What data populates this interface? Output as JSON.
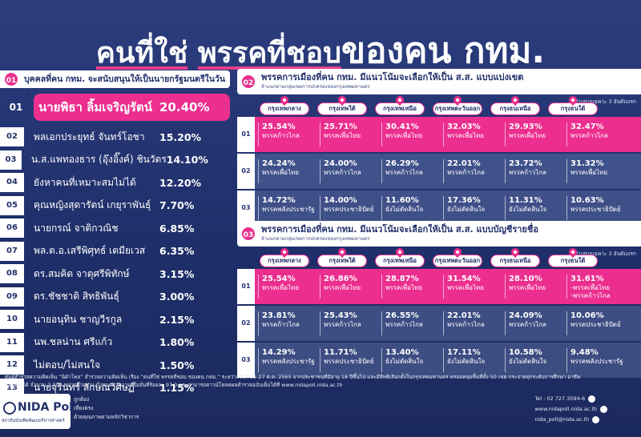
{
  "title": {
    "part1": "คนที่ใช่",
    "part2": "พรรคที่ชอบ",
    "part3": "ของคน กทม."
  },
  "section1": {
    "num": "01",
    "heading": "บุคคลที่คน กทม. จะสนับสนุนให้เป็นนายกรัฐมนตรีในวันนี้",
    "items": [
      {
        "rank": "01",
        "name": "นายพิธา ลิ้มเจริญรัตน์",
        "pct": "20.40%"
      },
      {
        "rank": "02",
        "name": "พลเอกประยุทธ์ จันทร์โอชา",
        "pct": "15.20%"
      },
      {
        "rank": "03",
        "name": "น.ส.แพทองธาร (อุ๊งอิ๊งค์) ชินวัตร",
        "pct": "14.10%"
      },
      {
        "rank": "04",
        "name": "ยังหาคนที่เหมาะสมไม่ได้",
        "pct": "12.20%"
      },
      {
        "rank": "05",
        "name": "คุณหญิงสุดารัตน์ เกยุราพันธุ์",
        "pct": "7.70%"
      },
      {
        "rank": "06",
        "name": "นายกรณ์ จาติกวณิช",
        "pct": "6.85%"
      },
      {
        "rank": "07",
        "name": "พล.ต.อ.เสรีพิศุทธ์ เตมียเวส",
        "pct": "6.35%"
      },
      {
        "rank": "08",
        "name": "ดร.สมคิด จาตุศรีพิทักษ์",
        "pct": "3.15%"
      },
      {
        "rank": "09",
        "name": "ดร.ชัชชาติ สิทธิพันธุ์",
        "pct": "3.00%"
      },
      {
        "rank": "10",
        "name": "นายอนุทิน ชาญวีรกูล",
        "pct": "2.15%"
      },
      {
        "rank": "11",
        "name": "นพ.ชลน่าน ศรีแก้ว",
        "pct": "1.80%"
      },
      {
        "rank": "12",
        "name": "ไม่ตอบ/ไม่สนใจ",
        "pct": "1.50%"
      },
      {
        "rank": "13",
        "name": "นายจุรินทร์ ลักษณวิศิษฏ์",
        "pct": "1.15%"
      }
    ]
  },
  "zones": [
    "กรุงเทพกลาง",
    "กรุงเทพใต้",
    "กรุงเทพเหนือ",
    "กรุงเทพตะวันออก",
    "กรุงธนเหนือ",
    "กรุงธนใต้"
  ],
  "section2": {
    "num": "02",
    "heading": "พรรคการเมืองที่คน กทม. มีแนวโน้มจะเลือกให้เป็น ส.ส. แบบแบ่งเขต",
    "sub": "จำแนกตามกลุ่มเขตการปกครองของกรุงเทพมหานคร",
    "note": "*นำเสนอเฉพาะ 3 อันดับแรก",
    "rows": [
      {
        "rank": "01",
        "cells": [
          {
            "pct": "25.54%",
            "party": "พรรคก้าวไกล"
          },
          {
            "pct": "25.71%",
            "party": "พรรคเพื่อไทย"
          },
          {
            "pct": "30.41%",
            "party": "พรรคเพื่อไทย"
          },
          {
            "pct": "32.03%",
            "party": "พรรคเพื่อไทย"
          },
          {
            "pct": "29.93%",
            "party": "พรรคเพื่อไทย"
          },
          {
            "pct": "32.47%",
            "party": "พรรคก้าวไกล"
          }
        ]
      },
      {
        "rank": "02",
        "cells": [
          {
            "pct": "24.24%",
            "party": "พรรคเพื่อไทย"
          },
          {
            "pct": "24.00%",
            "party": "พรรคก้าวไกล"
          },
          {
            "pct": "26.29%",
            "party": "พรรคก้าวไกล"
          },
          {
            "pct": "22.01%",
            "party": "พรรคก้าวไกล"
          },
          {
            "pct": "23.72%",
            "party": "พรรคก้าวไกล"
          },
          {
            "pct": "31.32%",
            "party": "พรรคเพื่อไทย"
          }
        ]
      },
      {
        "rank": "03",
        "cells": [
          {
            "pct": "14.72%",
            "party": "พรรคพลังประชารัฐ"
          },
          {
            "pct": "14.00%",
            "party": "พรรคประชาธิปัตย์"
          },
          {
            "pct": "11.60%",
            "party": "ยังไม่ตัดสินใจ"
          },
          {
            "pct": "17.36%",
            "party": "ยังไม่ตัดสินใจ"
          },
          {
            "pct": "11.31%",
            "party": "ยังไม่ตัดสินใจ"
          },
          {
            "pct": "10.63%",
            "party": "พรรคประชาธิปัตย์"
          }
        ]
      }
    ]
  },
  "section3": {
    "num": "03",
    "heading": "พรรคการเมืองที่คน กทม. มีแนวโน้มจะเลือกให้เป็น ส.ส. แบบบัญชีรายชื่อ",
    "sub": "จำแนกตามกลุ่มเขตการปกครองของกรุงเทพมหานคร",
    "note": "*นำเสนอเฉพาะ 3 อันดับแรก",
    "rows": [
      {
        "rank": "01",
        "cells": [
          {
            "pct": "25.54%",
            "party": "พรรคเพื่อไทย"
          },
          {
            "pct": "26.86%",
            "party": "พรรคเพื่อไทย"
          },
          {
            "pct": "28.87%",
            "party": "พรรคเพื่อไทย"
          },
          {
            "pct": "31.54%",
            "party": "พรรคเพื่อไทย"
          },
          {
            "pct": "28.10%",
            "party": "พรรคเพื่อไทย"
          },
          {
            "pct": "31.61%",
            "party": "-พรรคเพื่อไทย\n-พรรคก้าวไกล"
          }
        ]
      },
      {
        "rank": "02",
        "cells": [
          {
            "pct": "23.81%",
            "party": "พรรคก้าวไกล"
          },
          {
            "pct": "25.43%",
            "party": "พรรคก้าวไกล"
          },
          {
            "pct": "26.55%",
            "party": "พรรคก้าวไกล"
          },
          {
            "pct": "22.01%",
            "party": "พรรคก้าวไกล"
          },
          {
            "pct": "24.09%",
            "party": "พรรคก้าวไกล"
          },
          {
            "pct": "10.06%",
            "party": "พรรคประชาธิปัตย์"
          }
        ]
      },
      {
        "rank": "03",
        "cells": [
          {
            "pct": "14.29%",
            "party": "พรรคพลังประชารัฐ"
          },
          {
            "pct": "11.71%",
            "party": "พรรคประชาธิปัตย์"
          },
          {
            "pct": "13.40%",
            "party": "ยังไม่ตัดสินใจ"
          },
          {
            "pct": "17.11%",
            "party": "ยังไม่ตัดสินใจ"
          },
          {
            "pct": "10.58%",
            "party": "ยังไม่ตัดสินใจ"
          },
          {
            "pct": "9.48%",
            "party": "พรรคพลังประชารัฐ"
          }
        ]
      }
    ]
  },
  "footer": {
    "line1": "ศูนย์สำรวจความคิดเห็น “นิด้าโพล” สำรวจความคิดเห็น เรื่อง “คนที่ใช่ พรรคที่ชอบ ของคน กทม.” ระหว่างวันที่ 21-27 ต.ค. 2565 จากประชาชนที่มีอายุ 18 ปีขึ้นไป และมีสิทธิเลือกตั้งในกรุงเทพมหานคร ครอบคลุมพื้นที่ทั้ง 50 เขต กระจายทุกระดับการศึกษา อาชีพ",
    "line2": "และรายได้ จำนวน 2,000 หน่วยตัวอย่าง กำหนดค่าความเชื่อมั่นที่ร้อยละ 97.0 และสามารถดาวน์โหลดผลสำรวจฉบับเต็มได้ที่ www.nidapoll.nida.ac.th",
    "logo": "NIDA Poll",
    "logo_sub": "สถาบันบัณฑิตพัฒนบริหารศาสตร์",
    "staff": [
      "ถูกต้อง",
      "เที่ยงตรง",
      "ด้วยคุณภาพตามหลักวิชาการ"
    ],
    "contact": [
      "Tel : 02 727 3594-6",
      "www.nidapoll.nida.ac.th",
      "nida_poll@nida.ac.th"
    ]
  },
  "colors": {
    "background": "#26377a",
    "accent": "#ec2e8f",
    "panel": "#ffffff"
  }
}
